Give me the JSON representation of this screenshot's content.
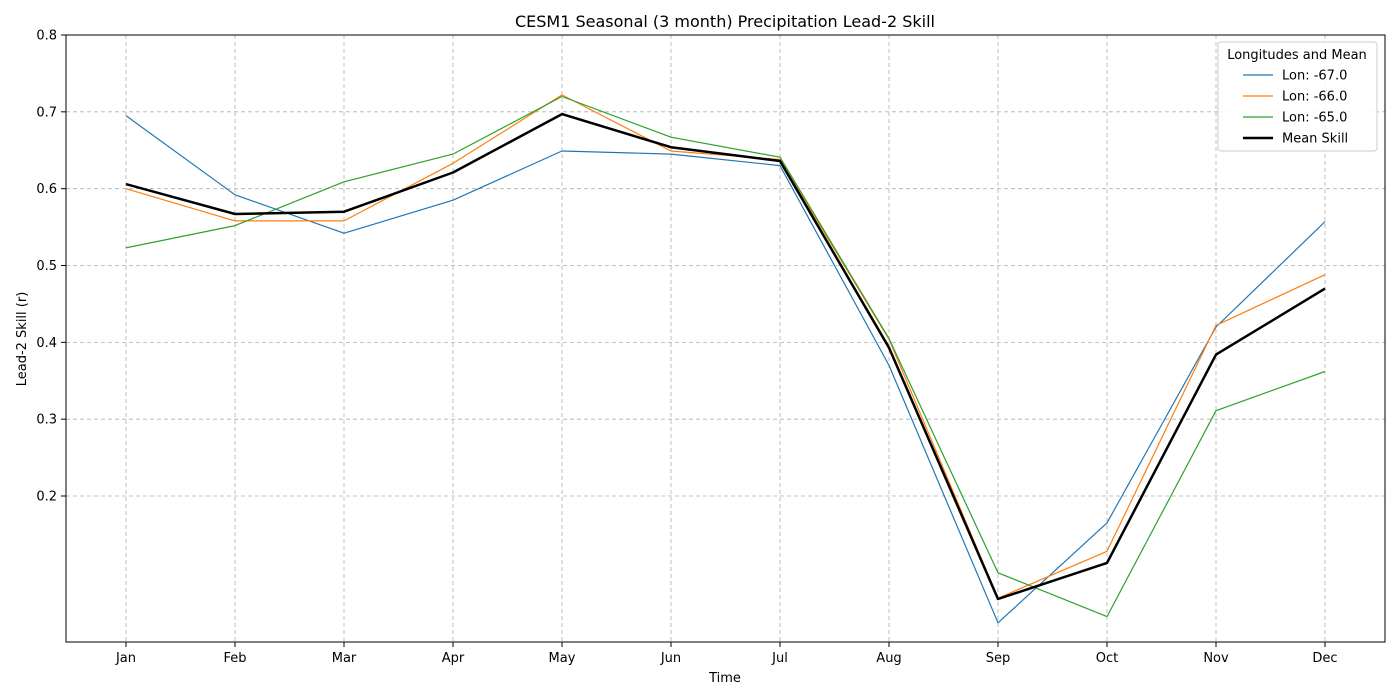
{
  "chart_data": {
    "type": "line",
    "title": "CESM1 Seasonal (3 month) Precipitation Lead-2 Skill",
    "xlabel": "Time",
    "ylabel": "Lead-2 Skill (r)",
    "categories": [
      "Jan",
      "Feb",
      "Mar",
      "Apr",
      "May",
      "Jun",
      "Jul",
      "Aug",
      "Sep",
      "Oct",
      "Nov",
      "Dec"
    ],
    "ylim": [
      0.01,
      0.8
    ],
    "yticks": [
      0.2,
      0.3,
      0.4,
      0.5,
      0.6,
      0.7,
      0.8
    ],
    "ytick_labels": [
      "0.2",
      "0.3",
      "0.4",
      "0.5",
      "0.6",
      "0.7",
      "0.8"
    ],
    "grid": true,
    "legend": {
      "title": "Longitudes and Mean",
      "placement": "top-right"
    },
    "series": [
      {
        "name": "Lon: -67.0",
        "color": "#1f77b4",
        "values": [
          0.695,
          0.592,
          0.542,
          0.585,
          0.649,
          0.645,
          0.63,
          0.37,
          0.035,
          0.165,
          0.42,
          0.557
        ]
      },
      {
        "name": "Lon: -66.0",
        "color": "#ff7f0e",
        "values": [
          0.6,
          0.558,
          0.558,
          0.633,
          0.722,
          0.649,
          0.638,
          0.404,
          0.067,
          0.128,
          0.422,
          0.488
        ]
      },
      {
        "name": "Lon: -65.0",
        "color": "#2ca02c",
        "values": [
          0.523,
          0.552,
          0.609,
          0.645,
          0.72,
          0.667,
          0.641,
          0.405,
          0.1,
          0.043,
          0.311,
          0.362
        ]
      },
      {
        "name": "Mean Skill",
        "color": "#000000",
        "values": [
          0.606,
          0.567,
          0.57,
          0.621,
          0.697,
          0.654,
          0.636,
          0.393,
          0.066,
          0.113,
          0.384,
          0.47
        ]
      }
    ]
  }
}
